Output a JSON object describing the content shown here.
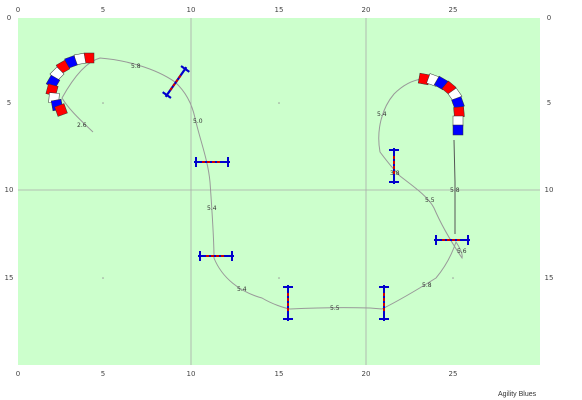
{
  "course": {
    "field_color": "#ccffcc",
    "grid_color": "#aaaaaa",
    "path_color": "#999999",
    "tunnel_colors": [
      "#ff0000",
      "#ffffff",
      "#0000ff"
    ],
    "jump_bar_color": "#0000cc",
    "jump_pole_color": "#cc0000",
    "x_labels": [
      "0",
      "5",
      "10",
      "15",
      "20",
      "25"
    ],
    "y_labels": [
      "0",
      "5",
      "10",
      "15"
    ],
    "segment_labels": [
      "5.8",
      "2.6",
      "5.0",
      "5.4",
      "5.4",
      "5.5",
      "5.8",
      "5.4",
      "5.5",
      "5.8",
      "5.6",
      "3.8"
    ],
    "branding": "Agility Blues",
    "obstacles": [
      {
        "type": "tunnel",
        "name": "tunnel-left-curve"
      },
      {
        "type": "tunnel",
        "name": "tunnel-right-curve"
      },
      {
        "type": "jump",
        "name": "jump-1"
      },
      {
        "type": "jump",
        "name": "jump-2"
      },
      {
        "type": "jump",
        "name": "jump-3"
      },
      {
        "type": "jump",
        "name": "jump-4"
      },
      {
        "type": "jump",
        "name": "jump-5"
      },
      {
        "type": "jump",
        "name": "jump-6"
      },
      {
        "type": "jump",
        "name": "jump-7"
      },
      {
        "type": "jump",
        "name": "jump-8"
      }
    ]
  }
}
